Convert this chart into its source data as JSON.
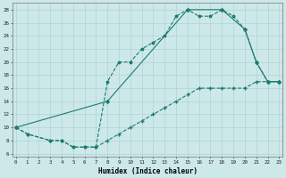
{
  "xlabel": "Humidex (Indice chaleur)",
  "bg_color": "#cce8e8",
  "grid_color": "#aacfcf",
  "line_color": "#1e7a6e",
  "line1": {
    "x": [
      0,
      1,
      3,
      4,
      5,
      6,
      7,
      8,
      9,
      10,
      11,
      12,
      13,
      14,
      15,
      16,
      17,
      18,
      19,
      20,
      21,
      22,
      23
    ],
    "y": [
      10,
      9,
      8,
      8,
      7,
      7,
      7,
      17,
      20,
      20,
      22,
      23,
      24,
      27,
      28,
      27,
      27,
      28,
      27,
      25,
      20,
      17,
      17
    ]
  },
  "line2": {
    "x": [
      0,
      1,
      3,
      4,
      5,
      6,
      7,
      8,
      9,
      10,
      11,
      12,
      13,
      14,
      15,
      16,
      17,
      18,
      19,
      20,
      21,
      22,
      23
    ],
    "y": [
      10,
      9,
      8,
      8,
      7,
      7,
      7,
      8,
      9,
      10,
      11,
      12,
      13,
      14,
      15,
      16,
      16,
      16,
      16,
      16,
      17,
      17,
      17
    ]
  },
  "line3": {
    "x": [
      0,
      8,
      15,
      18,
      20,
      21,
      22,
      23
    ],
    "y": [
      10,
      14,
      28,
      28,
      25,
      20,
      17,
      17
    ]
  },
  "xlim": [
    0,
    23
  ],
  "ylim": [
    6,
    28
  ],
  "yticks": [
    6,
    8,
    10,
    12,
    14,
    16,
    18,
    20,
    22,
    24,
    26,
    28
  ],
  "xticks": [
    0,
    1,
    2,
    3,
    4,
    5,
    6,
    7,
    8,
    9,
    10,
    11,
    12,
    13,
    14,
    15,
    16,
    17,
    18,
    19,
    20,
    21,
    22,
    23
  ],
  "tick_fontsize": 4.2,
  "xlabel_fontsize": 5.5
}
